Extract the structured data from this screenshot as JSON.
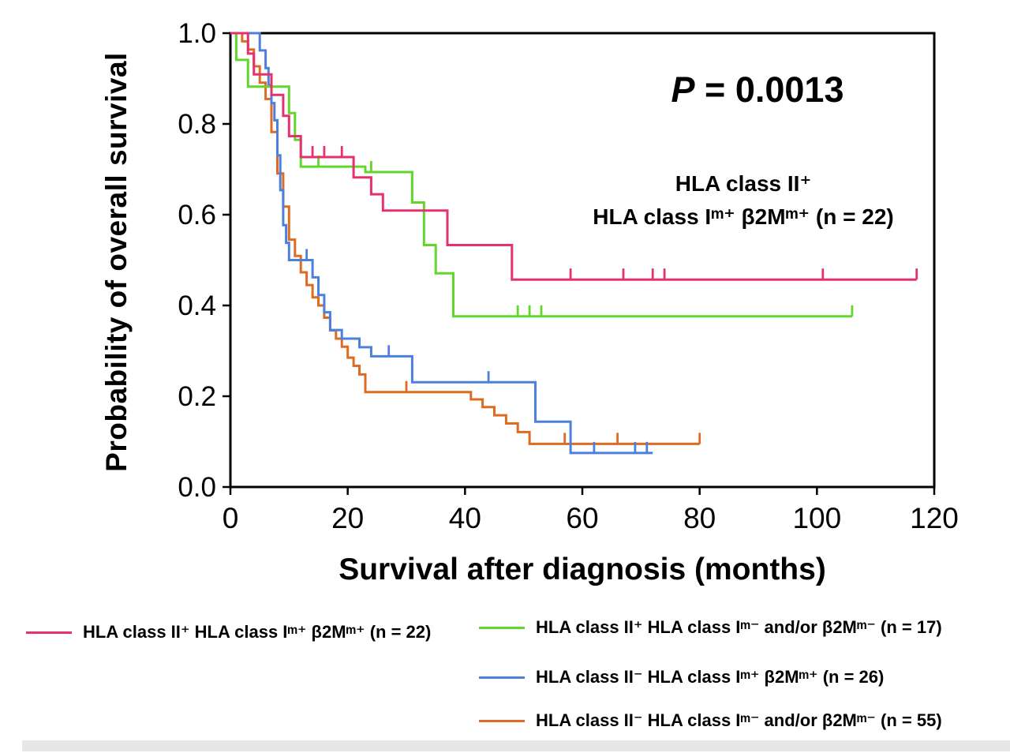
{
  "chart": {
    "ylabel": "Probability of overall survival",
    "xlabel": "Survival after diagnosis (months)",
    "p_italic": "P",
    "p_rest": " = 0.0013",
    "annotation_line1": "HLA class II⁺",
    "annotation_line2": "HLA class Iᵐ⁺ β2Mᵐ⁺ (n = 22)"
  },
  "chart_data": {
    "type": "line",
    "subtype": "kaplan-meier-step",
    "title": "",
    "xlabel": "Survival after diagnosis (months)",
    "ylabel": "Probability of overall survival",
    "xlim": [
      0,
      120
    ],
    "ylim": [
      0.0,
      1.0
    ],
    "xticks": [
      0,
      20,
      40,
      60,
      80,
      100,
      120
    ],
    "ytick_labels": [
      "0.0",
      "0.2",
      "0.4",
      "0.6",
      "0.8",
      "1.0"
    ],
    "grid": false,
    "p_value_text": "P = 0.0013",
    "annotation": "HLA class II⁺ HLA class Iᵐ⁺ β2Mᵐ⁺ (n = 22)",
    "frame_color": "#000000",
    "series": [
      {
        "id": "hla2pos-hla1pos",
        "name": "HLA class II⁺ HLA class Iᵐ⁺ β2Mᵐ⁺ (n = 22)",
        "n": 22,
        "color": "#e5316f",
        "steps": [
          [
            0,
            1.0
          ],
          [
            3,
            0.955
          ],
          [
            4,
            0.909
          ],
          [
            7,
            0.864
          ],
          [
            9,
            0.818
          ],
          [
            10,
            0.773
          ],
          [
            12,
            0.727
          ],
          [
            21,
            0.682
          ],
          [
            24,
            0.645
          ],
          [
            26,
            0.609
          ],
          [
            37,
            0.533
          ],
          [
            48,
            0.457
          ],
          [
            117,
            0.457
          ]
        ],
        "censors": [
          [
            14,
            0.727
          ],
          [
            16,
            0.727
          ],
          [
            19,
            0.727
          ],
          [
            58,
            0.457
          ],
          [
            67,
            0.457
          ],
          [
            72,
            0.457
          ],
          [
            74,
            0.457
          ],
          [
            101,
            0.457
          ],
          [
            117,
            0.457
          ]
        ]
      },
      {
        "id": "hla2pos-hla1neg",
        "name": "HLA class II⁺ HLA class Iᵐ⁻ and/or β2Mᵐ⁻ (n = 17)",
        "n": 17,
        "color": "#63d62e",
        "steps": [
          [
            0,
            1.0
          ],
          [
            1,
            0.941
          ],
          [
            3,
            0.882
          ],
          [
            10,
            0.824
          ],
          [
            11,
            0.765
          ],
          [
            12,
            0.706
          ],
          [
            23,
            0.694
          ],
          [
            31,
            0.627
          ],
          [
            33,
            0.533
          ],
          [
            35,
            0.471
          ],
          [
            38,
            0.376
          ],
          [
            106,
            0.376
          ]
        ],
        "censors": [
          [
            15,
            0.706
          ],
          [
            24,
            0.694
          ],
          [
            49,
            0.376
          ],
          [
            51,
            0.376
          ],
          [
            53,
            0.376
          ],
          [
            106,
            0.376
          ]
        ]
      },
      {
        "id": "hla2neg-hla1pos",
        "name": "HLA class II⁻ HLA class Iᵐ⁺ β2Mᵐ⁺ (n = 26)",
        "n": 26,
        "color": "#4c80dc",
        "steps": [
          [
            0,
            1.0
          ],
          [
            5,
            0.962
          ],
          [
            6,
            0.923
          ],
          [
            6.5,
            0.885
          ],
          [
            7,
            0.846
          ],
          [
            7.5,
            0.808
          ],
          [
            8,
            0.731
          ],
          [
            8.5,
            0.654
          ],
          [
            9,
            0.577
          ],
          [
            9.5,
            0.538
          ],
          [
            10,
            0.5
          ],
          [
            14,
            0.462
          ],
          [
            15,
            0.423
          ],
          [
            16,
            0.385
          ],
          [
            17,
            0.346
          ],
          [
            19,
            0.327
          ],
          [
            22,
            0.308
          ],
          [
            24,
            0.288
          ],
          [
            31,
            0.231
          ],
          [
            52,
            0.144
          ],
          [
            58,
            0.075
          ],
          [
            72,
            0.075
          ]
        ],
        "censors": [
          [
            13,
            0.5
          ],
          [
            27,
            0.288
          ],
          [
            44,
            0.231
          ],
          [
            62,
            0.075
          ],
          [
            69,
            0.075
          ],
          [
            71,
            0.075
          ]
        ]
      },
      {
        "id": "hla2neg-hla1neg",
        "name": "HLA class II⁻ HLA class Iᵐ⁻ and/or β2Mᵐ⁻ (n = 55)",
        "n": 55,
        "color": "#dd6b21",
        "steps": [
          [
            0,
            1.0
          ],
          [
            2,
            0.982
          ],
          [
            3,
            0.964
          ],
          [
            4,
            0.927
          ],
          [
            5,
            0.891
          ],
          [
            6,
            0.855
          ],
          [
            7,
            0.782
          ],
          [
            8,
            0.691
          ],
          [
            9,
            0.618
          ],
          [
            10,
            0.545
          ],
          [
            11,
            0.509
          ],
          [
            12,
            0.473
          ],
          [
            13,
            0.445
          ],
          [
            14,
            0.418
          ],
          [
            15,
            0.4
          ],
          [
            16,
            0.373
          ],
          [
            17,
            0.345
          ],
          [
            18,
            0.327
          ],
          [
            19,
            0.309
          ],
          [
            20,
            0.285
          ],
          [
            21,
            0.267
          ],
          [
            22,
            0.248
          ],
          [
            23,
            0.209
          ],
          [
            41,
            0.193
          ],
          [
            43,
            0.176
          ],
          [
            45,
            0.158
          ],
          [
            47,
            0.14
          ],
          [
            49,
            0.121
          ],
          [
            51,
            0.095
          ],
          [
            80,
            0.095
          ]
        ],
        "censors": [
          [
            30,
            0.209
          ],
          [
            57,
            0.095
          ],
          [
            66,
            0.095
          ],
          [
            80,
            0.095
          ]
        ]
      }
    ]
  },
  "legend": {
    "items": [
      {
        "label": "HLA class II⁺ HLA class Iᵐ⁺ β2Mᵐ⁺ (n = 22)",
        "color": "#e5316f"
      },
      {
        "label": "HLA class II⁺ HLA class Iᵐ⁻ and/or β2Mᵐ⁻ (n = 17)",
        "color": "#63d62e"
      },
      {
        "label": "HLA class II⁻ HLA class Iᵐ⁺ β2Mᵐ⁺ (n = 26)",
        "color": "#4c80dc"
      },
      {
        "label": "HLA class II⁻ HLA class Iᵐ⁻ and/or β2Mᵐ⁻ (n = 55)",
        "color": "#dd6b21"
      }
    ]
  }
}
